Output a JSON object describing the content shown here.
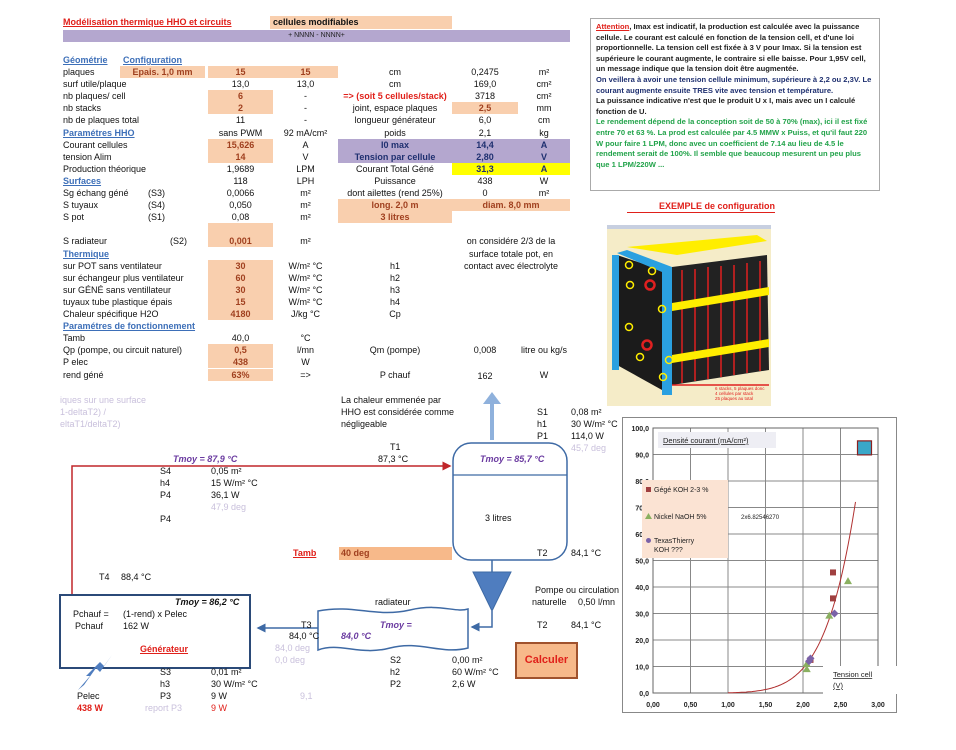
{
  "header": {
    "title": "Modélisation thermique HHO et circuits",
    "modifiable": "cellules modifiables",
    "config_code": "+ NNNN - NNNN+",
    "link_geometry": "Géométrie",
    "link_config": "Configuration"
  },
  "colors": {
    "highlight": "#f9cfae",
    "purple": "#b4a7cf",
    "yellow": "#ffff00",
    "accent_red": "#e0201a",
    "link": "#3d6fb8"
  },
  "rows": [
    {
      "label": "plaques",
      "cells": [
        {
          "col": 1,
          "t": "Epais. 1,0 mm",
          "s": "hl"
        },
        {
          "col": 2,
          "t": "15",
          "s": "hl"
        },
        {
          "col": 3,
          "t": "15",
          "s": "hl"
        },
        {
          "col": 4,
          "t": "cm"
        },
        {
          "col": 5,
          "t": "0,2475"
        },
        {
          "col": 6,
          "t": "m²"
        }
      ]
    },
    {
      "label": "surf utile/plaque",
      "cells": [
        {
          "col": 2,
          "t": "13,0"
        },
        {
          "col": 3,
          "t": "13,0"
        },
        {
          "col": 4,
          "t": "cm"
        },
        {
          "col": 5,
          "t": "169,0"
        },
        {
          "col": 6,
          "t": "cm²"
        }
      ]
    },
    {
      "label": "nb plaques/ cell",
      "cells": [
        {
          "col": 2,
          "t": "6",
          "s": "hl"
        },
        {
          "col": 3,
          "t": "-"
        },
        {
          "col": 4,
          "t": "=> (soit 5 cellules/stack)",
          "s": "red"
        },
        {
          "col": 5,
          "t": "3718"
        },
        {
          "col": 6,
          "t": "cm²"
        }
      ]
    },
    {
      "label": "nb stacks",
      "cells": [
        {
          "col": 2,
          "t": "2",
          "s": "hl"
        },
        {
          "col": 3,
          "t": "-"
        },
        {
          "col": 4,
          "t": "joint, espace plaques"
        },
        {
          "col": 5,
          "t": "2,5",
          "s": "hl"
        },
        {
          "col": 6,
          "t": "mm"
        }
      ]
    },
    {
      "label": "nb de plaques total",
      "cells": [
        {
          "col": 2,
          "t": "11"
        },
        {
          "col": 3,
          "t": "-"
        },
        {
          "col": 4,
          "t": "longueur générateur"
        },
        {
          "col": 5,
          "t": "6,0"
        },
        {
          "col": 6,
          "t": "cm"
        }
      ]
    },
    {
      "label": "Paramétres HHO",
      "section": true,
      "cells": [
        {
          "col": 2,
          "t": "sans PWM"
        },
        {
          "col": 3,
          "t": "92 mA/cm²"
        },
        {
          "col": 4,
          "t": "poids"
        },
        {
          "col": 5,
          "t": "2,1"
        },
        {
          "col": 6,
          "t": "kg"
        }
      ]
    },
    {
      "label": "Courant cellules",
      "cells": [
        {
          "col": 2,
          "t": "15,626",
          "s": "hl"
        },
        {
          "col": 3,
          "t": "A"
        },
        {
          "col": 4,
          "t": "I0 max",
          "s": "purple"
        },
        {
          "col": 5,
          "t": "14,4",
          "s": "purple"
        },
        {
          "col": 6,
          "t": "A",
          "s": "purple"
        }
      ]
    },
    {
      "label": "tension Alim",
      "cells": [
        {
          "col": 2,
          "t": "14",
          "s": "hl"
        },
        {
          "col": 3,
          "t": "V"
        },
        {
          "col": 4,
          "t": "Tension par cellule",
          "s": "purple"
        },
        {
          "col": 5,
          "t": "2,80",
          "s": "purple"
        },
        {
          "col": 6,
          "t": "V",
          "s": "purple"
        }
      ]
    },
    {
      "label": "Production théorique",
      "cells": [
        {
          "col": 2,
          "t": "1,9689"
        },
        {
          "col": 3,
          "t": "LPM"
        },
        {
          "col": 4,
          "t": "Courant Total Géné"
        },
        {
          "col": 5,
          "t": "31,3",
          "s": "yellow"
        },
        {
          "col": 6,
          "t": "A",
          "s": "yellow"
        }
      ]
    },
    {
      "label": "Surfaces",
      "section": true,
      "cells": [
        {
          "col": 2,
          "t": "118"
        },
        {
          "col": 3,
          "t": "LPH"
        },
        {
          "col": 4,
          "t": "Puissance"
        },
        {
          "col": 5,
          "t": "438"
        },
        {
          "col": 6,
          "t": "W"
        }
      ]
    },
    {
      "label": "Sg échang géné",
      "cells": [
        {
          "col": 1,
          "t": "(S3)"
        },
        {
          "col": 2,
          "t": "0,0066"
        },
        {
          "col": 3,
          "t": "m²"
        },
        {
          "col": 4,
          "t": "dont ailettes (rend 25%)"
        },
        {
          "col": 5,
          "t": "0"
        },
        {
          "col": 6,
          "t": "m²"
        }
      ]
    },
    {
      "label": "S tuyaux",
      "cells": [
        {
          "col": 1,
          "t": "(S4)"
        },
        {
          "col": 2,
          "t": "0,050"
        },
        {
          "col": 3,
          "t": "m²"
        },
        {
          "col": 4,
          "t": "long. 2,0 m",
          "s": "hl"
        },
        {
          "col": 56,
          "t": "diam. 8,0 mm",
          "s": "hl"
        }
      ]
    },
    {
      "label": "S pot",
      "cells": [
        {
          "col": 1,
          "t": "(S1)"
        },
        {
          "col": 2,
          "t": "0,08"
        },
        {
          "col": 3,
          "t": "m²"
        },
        {
          "col": 4,
          "t": "3 litres",
          "s": "hl"
        }
      ]
    },
    {
      "label": "",
      "cells": [
        {
          "col": 2,
          "t": "",
          "s": "hl"
        }
      ]
    },
    {
      "label": "S radiateur",
      "cells": [
        {
          "col": 1,
          "t": "(S2)"
        },
        {
          "col": 2,
          "t": "0,001",
          "s": "hl"
        },
        {
          "col": 3,
          "t": "m²"
        },
        {
          "col": 56,
          "t": "on considére 2/3 de la"
        }
      ]
    },
    {
      "label": "Thermique",
      "section": true,
      "cells": [
        {
          "col": 56,
          "t": "surface totale pot, en"
        }
      ]
    },
    {
      "label": "sur POT sans ventilateur",
      "cells": [
        {
          "col": 2,
          "t": "30",
          "s": "hl"
        },
        {
          "col": 3,
          "t": "W/m² °C"
        },
        {
          "col": 4,
          "t": "h1"
        },
        {
          "col": 56,
          "t": "contact avec électrolyte"
        }
      ]
    },
    {
      "label": "sur échangeur plus ventilateur",
      "cells": [
        {
          "col": 2,
          "t": "60",
          "s": "hl"
        },
        {
          "col": 3,
          "t": "W/m² °C"
        },
        {
          "col": 4,
          "t": "h2"
        }
      ]
    },
    {
      "label": "sur GÉNÉ sans ventillateur",
      "cells": [
        {
          "col": 2,
          "t": "30",
          "s": "hl"
        },
        {
          "col": 3,
          "t": "W/m² °C"
        },
        {
          "col": 4,
          "t": "h3"
        }
      ]
    },
    {
      "label": "tuyaux tube plastique épais",
      "cells": [
        {
          "col": 2,
          "t": "15",
          "s": "hl"
        },
        {
          "col": 3,
          "t": "W/m² °C"
        },
        {
          "col": 4,
          "t": "h4"
        }
      ]
    },
    {
      "label": "Chaleur spécifique H2O",
      "cells": [
        {
          "col": 2,
          "t": "4180",
          "s": "hl"
        },
        {
          "col": 3,
          "t": "J/kg  °C"
        },
        {
          "col": 4,
          "t": "Cp"
        }
      ]
    },
    {
      "label": "Paramétres de fonctionnement",
      "section": true,
      "cells": []
    },
    {
      "label": "Tamb",
      "cells": [
        {
          "col": 2,
          "t": "40,0"
        },
        {
          "col": 3,
          "t": "°C"
        }
      ]
    },
    {
      "label": "Qp (pompe, ou circuit naturel)",
      "cells": [
        {
          "col": 2,
          "t": "0,5",
          "s": "hl"
        },
        {
          "col": 3,
          "t": "l/mn"
        },
        {
          "col": 4,
          "t": "Qm (pompe)"
        },
        {
          "col": 5,
          "t": "0,008"
        },
        {
          "col": 6,
          "t": "litre ou kg/s"
        }
      ]
    },
    {
      "label": "P elec",
      "cells": [
        {
          "col": 2,
          "t": "438",
          "s": "hl"
        },
        {
          "col": 3,
          "t": "W"
        }
      ]
    },
    {
      "label": "rend géné",
      "cells": [
        {
          "col": 2,
          "t": "63%",
          "s": "hl"
        },
        {
          "col": 3,
          "t": "=>"
        },
        {
          "col": 4,
          "t": "P chauf"
        },
        {
          "col": 5,
          "t": "162"
        },
        {
          "col": 6,
          "t": "W"
        }
      ]
    }
  ],
  "note": {
    "attention": "Attention",
    "p1": ", Imax est indicatif, la production est calculée avec la puissance cellule. Le courant est calculé en fonction de la tension cell, et d'une loi proportionnelle. La tension cell est fixée à 3 V pour Imax. Si la tension est supérieure le courant augmente, le contraire si elle baisse. Pour 1,95V cell, un message indique que la tension doit être augmentée.",
    "p2": "On veillera à avoir une tension cellule minimum, supérieure à 2,2 ou 2,3V. Le courant augmente ensuite TRES vite avec tension et température.",
    "p3": "La puissance indicative n'est que le produit U x I, mais avec un I calculé fonction de U.",
    "p4": "Le rendement dépend de la conception soit de 50 à 70% (max), ici il est fixé entre 70 et 63 %. La prod est calculée par 4.5 MMW x Puiss, et qu'il faut 220 W pour faire 1 LPM, donc avec un coefficient de 7.14 au lieu de 4.5 le rendement serait de 100%. Il semble que beaucoup mesurent un peu plus que 1 LPM/220W ..."
  },
  "example": {
    "title": "EXEMPLE de configuration",
    "caption1": "6 stacks,  5 plaques donc",
    "caption2": "4 cellules  par stack",
    "caption3": "25 plaques au total"
  },
  "diagram": {
    "grey1": "iques sur une surface",
    "grey2": "1-deltaT2) /",
    "grey3": "eltaT1/deltaT2)",
    "hho1": "La chaleur emmenée par",
    "hho2": "HHO est considérée comme",
    "hho3": "négligeable",
    "s1": "S1",
    "s1v": "0,08 m²",
    "h1": "h1",
    "h1v": "30 W/m² °C",
    "p1": "P1",
    "p1v": "114,0 W",
    "p1deg": "45,7 deg",
    "pipe_tmoy": "Tmoy =  87,9  °C",
    "t1": "T1",
    "t1v": "87,3  °C",
    "s4": "S4",
    "s4v": "0,05 m²",
    "h4": "h4",
    "h4v": "15 W/m² °C",
    "p4": "P4",
    "p4v": "36,1 W",
    "p4deg": "47,9 deg",
    "p4b": "P4",
    "tank_tmoy": "Tmoy =  85,7  °C",
    "tank_vol": "3 litres",
    "tamb": "Tamb",
    "tamb_v": "40 deg",
    "t2a": "T2",
    "t2av": "84,1  °C",
    "t4": "T4",
    "t4v": "88,4  °C",
    "pump1": "Pompe ou circulation",
    "pump2": "naturelle",
    "pump_v": "0,50 l/mn",
    "t2b": "T2",
    "t2bv": "84,1  °C",
    "gen_tmoy": "Tmoy =  86,2  °C",
    "pchauf_eq": "Pchauf =",
    "pchauf_formula": "(1-rend) x Pelec",
    "pchauf": "Pchauf",
    "pchauf_v": "162 W",
    "gen_label": "Générateur",
    "t3": "T3",
    "t3v": "84,0  °C",
    "t3deg1": "84,0 deg",
    "t3deg2": "0,0 deg",
    "rad_label": "radiateur",
    "rad_tmoy": "Tmoy =",
    "rad_tmoy_v": "84,0  °C",
    "s2": "S2",
    "s2v": "0,00 m²",
    "h2": "h2",
    "h2v": "60 W/m² °C",
    "p2": "P2",
    "p2v": "2,6 W",
    "calc": "Calculer",
    "s3": "S3",
    "s3v": "0,01 m²",
    "h3": "h3",
    "h3v": "30 W/m² °C",
    "p3": "P3",
    "p3v": "9 W",
    "p3x": "9,1",
    "report": "report P3",
    "report_v": "9 W",
    "pelec": "Pelec",
    "pelec_v": "438 W"
  },
  "chart_data": {
    "type": "scatter",
    "title": "Densité courant (mA/cm²)",
    "xlabel": "Tension cell (V)",
    "xlim": [
      0,
      3
    ],
    "ylim": [
      0,
      100
    ],
    "xticks": [
      "0,00",
      "0,50",
      "1,00",
      "1,50",
      "2,00",
      "2,50",
      "3,00"
    ],
    "yticks": [
      "0,0",
      "10,0",
      "20,0",
      "30,0",
      "40,0",
      "50,0",
      "60,0",
      "70,0",
      "80,0",
      "90,0",
      "100,0"
    ],
    "grid": true,
    "legend": "left",
    "trendline_label": "2x6.82546270",
    "trendline": {
      "exponent": 6.8254627,
      "coefficient": 0.082,
      "x_range": [
        1.0,
        2.7
      ],
      "color": "#b03030"
    },
    "series": [
      {
        "name": "Gégé KOH 2-3 %",
        "marker": "square",
        "color": "#a04040",
        "points": [
          [
            2.4,
            45.5
          ],
          [
            2.4,
            35.7
          ],
          [
            2.1,
            12.5
          ]
        ]
      },
      {
        "name": "Nickel NaOH 5%",
        "marker": "triangle",
        "color": "#8ab060",
        "points": [
          [
            2.6,
            42.2
          ],
          [
            2.35,
            29.2
          ],
          [
            2.05,
            9.0
          ],
          [
            2.05,
            11.0
          ]
        ]
      },
      {
        "name": "TexasThierry KOH ???",
        "marker": "diamond",
        "color": "#7a62a8",
        "points": [
          [
            2.42,
            30.0
          ],
          [
            2.08,
            12.0
          ],
          [
            2.1,
            13.0
          ]
        ]
      }
    ],
    "marker_box": {
      "x": 2.82,
      "y": 92.5,
      "color": "#3aa7c8"
    }
  }
}
